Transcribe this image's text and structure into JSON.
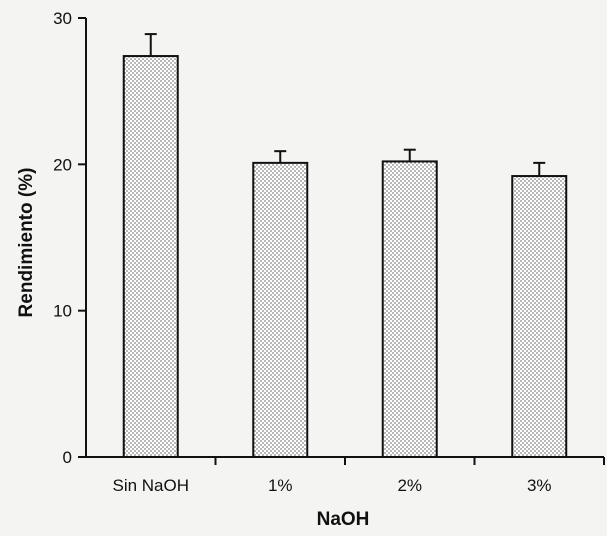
{
  "chart_data": {
    "type": "bar",
    "title": "",
    "xlabel": "NaOH",
    "ylabel": "Rendimiento (%)",
    "categories": [
      "Sin NaOH",
      "1%",
      "2%",
      "3%"
    ],
    "values": [
      27.4,
      20.1,
      20.2,
      19.2
    ],
    "error_bars": [
      1.5,
      0.8,
      0.8,
      0.9
    ],
    "ylim": [
      0,
      30
    ],
    "yticks": [
      0,
      10,
      20,
      30
    ],
    "grid": false,
    "bar_pattern": "dotted",
    "colors": {
      "bar_fill": "#ffffff",
      "bar_dots": "#222222",
      "axis": "#111111"
    }
  }
}
